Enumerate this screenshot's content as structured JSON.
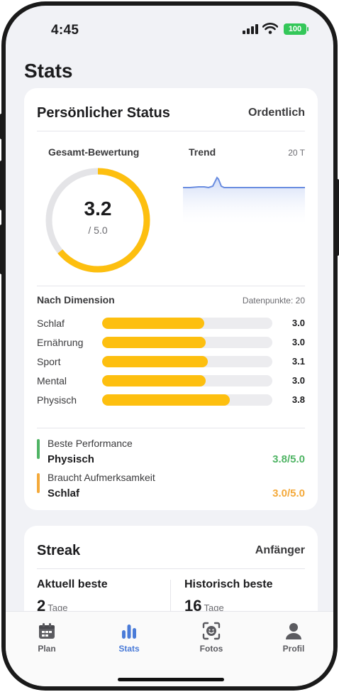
{
  "status_bar": {
    "time": "4:45",
    "battery": "100"
  },
  "page": {
    "title": "Stats"
  },
  "status_card": {
    "title": "Persönlicher Status",
    "badge": "Ordentlich",
    "overall_label": "Gesamt-Bewertung",
    "score": "3.2",
    "score_max": "/ 5.0",
    "score_value": 3.2,
    "score_scale": 5.0,
    "trend_label": "Trend",
    "trend_period": "20 T",
    "dimension_label": "Nach Dimension",
    "data_points": "Datenpunkte: 20",
    "dimensions": [
      {
        "label": "Schlaf",
        "value": "3.0",
        "fraction": 0.6
      },
      {
        "label": "Ernährung",
        "value": "3.0",
        "fraction": 0.61
      },
      {
        "label": "Sport",
        "value": "3.1",
        "fraction": 0.62
      },
      {
        "label": "Mental",
        "value": "3.0",
        "fraction": 0.61
      },
      {
        "label": "Physisch",
        "value": "3.8",
        "fraction": 0.75
      }
    ],
    "best": {
      "caption": "Beste Performance",
      "name": "Physisch",
      "score": "3.8/5.0",
      "color": "#4fb464"
    },
    "attention": {
      "caption": "Braucht Aufmerksamkeit",
      "name": "Schlaf",
      "score": "3.0/5.0",
      "color": "#f4a93a"
    },
    "accent_color": "#fdbf0f"
  },
  "streak_card": {
    "title": "Streak",
    "badge": "Anfänger",
    "current_label": "Aktuell beste",
    "current_value": "2",
    "current_unit": "Tage",
    "historic_label": "Historisch beste",
    "historic_value": "16",
    "historic_unit": "Tage"
  },
  "tabs": [
    {
      "label": "Plan",
      "icon": "calendar-icon"
    },
    {
      "label": "Stats",
      "icon": "bar-chart-icon",
      "active": true
    },
    {
      "label": "Fotos",
      "icon": "face-scan-icon"
    },
    {
      "label": "Profil",
      "icon": "person-icon"
    }
  ],
  "colors": {
    "tab_active": "#4a7bd8",
    "trend_line": "#6a8de0"
  }
}
